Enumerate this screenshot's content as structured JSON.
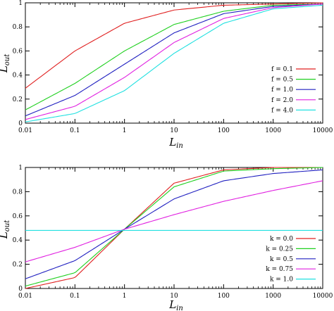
{
  "chart_data": [
    {
      "type": "line",
      "x_scale": "log",
      "xlim": [
        0.01,
        10000
      ],
      "ylim": [
        0,
        1
      ],
      "grid": false,
      "legend_position": "bottom-right",
      "xlabel": {
        "main": "L",
        "sub": "in"
      },
      "ylabel": {
        "main": "L",
        "sub": "out"
      },
      "x_tick_labels": [
        "0.01",
        "0.1",
        "1",
        "10",
        "100",
        "1000",
        "10000"
      ],
      "y_tick_labels": [
        "0",
        "0.2",
        "0.4",
        "0.6",
        "0.8",
        "1"
      ],
      "x": [
        0.01,
        0.1,
        1,
        10,
        100,
        1000,
        10000
      ],
      "series": [
        {
          "name": "f = 0.1",
          "color": "#e02020",
          "values": [
            0.29,
            0.6,
            0.83,
            0.94,
            0.98,
            0.99,
            1.0
          ]
        },
        {
          "name": "f = 0.5",
          "color": "#20d020",
          "values": [
            0.11,
            0.33,
            0.6,
            0.82,
            0.93,
            0.98,
            0.99
          ]
        },
        {
          "name": "f = 1.0",
          "color": "#2020c0",
          "values": [
            0.06,
            0.23,
            0.49,
            0.75,
            0.91,
            0.97,
            0.99
          ]
        },
        {
          "name": "f = 2.0",
          "color": "#e020e0",
          "values": [
            0.03,
            0.14,
            0.38,
            0.67,
            0.87,
            0.96,
            0.99
          ]
        },
        {
          "name": "f = 4.0",
          "color": "#20e0e0",
          "values": [
            0.01,
            0.08,
            0.27,
            0.58,
            0.83,
            0.95,
            0.98
          ]
        }
      ]
    },
    {
      "type": "line",
      "x_scale": "log",
      "xlim": [
        0.01,
        10000
      ],
      "ylim": [
        0,
        1
      ],
      "grid": false,
      "legend_position": "bottom-right",
      "xlabel": {
        "main": "L",
        "sub": "in"
      },
      "ylabel": {
        "main": "L",
        "sub": "out"
      },
      "x_tick_labels": [
        "0.01",
        "0.1",
        "1",
        "10",
        "100",
        "1000",
        "10000"
      ],
      "y_tick_labels": [
        "0",
        "0.2",
        "0.4",
        "0.6",
        "0.8",
        "1"
      ],
      "x": [
        0.01,
        0.1,
        1,
        10,
        100,
        1000,
        10000
      ],
      "series": [
        {
          "name": "k = 0.0",
          "color": "#e02020",
          "values": [
            0.0,
            0.09,
            0.49,
            0.87,
            0.98,
            1.0,
            1.0
          ]
        },
        {
          "name": "k = 0.25",
          "color": "#20d020",
          "values": [
            0.02,
            0.13,
            0.49,
            0.84,
            0.97,
            0.99,
            1.0
          ]
        },
        {
          "name": "k = 0.5",
          "color": "#2020c0",
          "values": [
            0.08,
            0.23,
            0.49,
            0.74,
            0.89,
            0.95,
            0.98
          ]
        },
        {
          "name": "k = 0.75",
          "color": "#e020e0",
          "values": [
            0.22,
            0.34,
            0.49,
            0.61,
            0.72,
            0.81,
            0.89
          ]
        },
        {
          "name": "k = 1.0",
          "color": "#20e0e0",
          "values": [
            0.48,
            0.48,
            0.48,
            0.48,
            0.48,
            0.48,
            0.48
          ]
        }
      ]
    }
  ]
}
